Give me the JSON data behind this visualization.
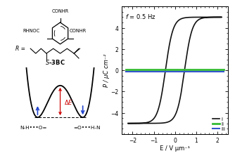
{
  "left_panel": {
    "background_color": "#ffffff",
    "compound_label": "S-3BC",
    "delta_E_color": "#cc0000",
    "arrow_color": "#2244cc",
    "bottom_labels": {
      "left": "N-H•••O=",
      "right": "=O•••H-N"
    }
  },
  "right_panel": {
    "annotation": "f = 0.5 Hz",
    "xlabel": "E / V μm⁻¹",
    "ylabel": "P / μC cm⁻²",
    "xlim": [
      -2.5,
      2.5
    ],
    "ylim": [
      -6,
      6
    ],
    "xticks": [
      -2,
      -1,
      0,
      1,
      2
    ],
    "yticks": [
      -4,
      -2,
      0,
      2,
      4
    ],
    "legend": [
      {
        "label": "i",
        "color": "#111111",
        "lw": 1.2
      },
      {
        "label": "ii",
        "color": "#33bb33",
        "lw": 2.0
      },
      {
        "label": "iii",
        "color": "#3355cc",
        "lw": 1.5
      }
    ],
    "loop_E_max": 2.2,
    "loop_P_max": 5.0,
    "background_color": "#ffffff"
  }
}
